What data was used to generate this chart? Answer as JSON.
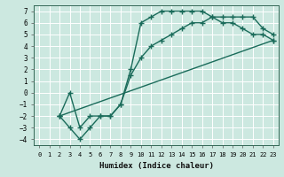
{
  "xlabel": "Humidex (Indice chaleur)",
  "bg_color": "#cce8e0",
  "grid_color": "#ffffff",
  "line_color": "#1a6b5a",
  "xlim": [
    -0.5,
    23.5
  ],
  "ylim": [
    -4.5,
    7.5
  ],
  "xticks": [
    0,
    1,
    2,
    3,
    4,
    5,
    6,
    7,
    8,
    9,
    10,
    11,
    12,
    13,
    14,
    15,
    16,
    17,
    18,
    19,
    20,
    21,
    22,
    23
  ],
  "yticks": [
    -4,
    -3,
    -2,
    -1,
    0,
    1,
    2,
    3,
    4,
    5,
    6,
    7
  ],
  "line1_x": [
    2,
    3,
    4,
    5,
    6,
    7,
    8,
    9,
    10,
    11,
    12,
    13,
    14,
    15,
    16,
    17,
    18,
    19,
    20,
    21,
    22,
    23
  ],
  "line1_y": [
    -2,
    -3,
    -4,
    -3,
    -2,
    -2,
    -1,
    2,
    6,
    6.5,
    7,
    7,
    7,
    7,
    7,
    6.5,
    6,
    6,
    5.5,
    5,
    5,
    4.5
  ],
  "line2_x": [
    2,
    3,
    4,
    5,
    6,
    7,
    8,
    9,
    10,
    11,
    12,
    13,
    14,
    15,
    16,
    17,
    18,
    19,
    20,
    21,
    22,
    23
  ],
  "line2_y": [
    -2,
    0,
    -3,
    -2,
    -2,
    -2,
    -1,
    1.5,
    3,
    4,
    4.5,
    5,
    5.5,
    6,
    6,
    6.5,
    6.5,
    6.5,
    6.5,
    6.5,
    5.5,
    5
  ],
  "line3_x": [
    2,
    23
  ],
  "line3_y": [
    -2,
    4.5
  ],
  "marker": "+",
  "marker_size": 4,
  "line_width": 1.0
}
